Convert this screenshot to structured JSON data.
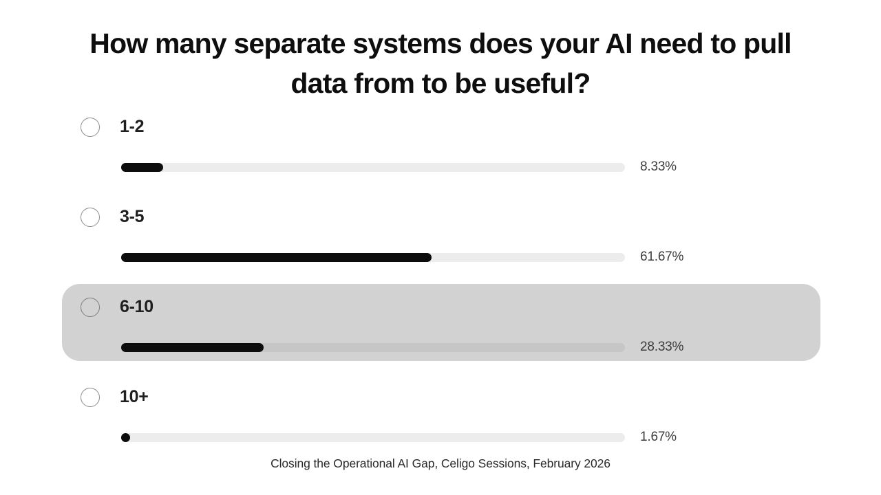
{
  "slide": {
    "title": "How many separate systems does your AI need to pull data from to be useful?",
    "footer": "Closing the Operational AI Gap, Celigo Sessions, February 2026"
  },
  "poll": {
    "highlighted_index": 2,
    "options": [
      {
        "label": "1-2",
        "value": 8.33,
        "percent_label": "8.33%"
      },
      {
        "label": "3-5",
        "value": 61.67,
        "percent_label": "61.67%"
      },
      {
        "label": "6-10",
        "value": 28.33,
        "percent_label": "28.33%"
      },
      {
        "label": "10+",
        "value": 1.67,
        "percent_label": "1.67%"
      }
    ]
  },
  "colors": {
    "bar_fill": "#0d0d0d",
    "bar_track": "#ececec",
    "bar_track_highlighted": "#c6c6c6",
    "highlight_background": "#d2d2d2",
    "title_text": "#0e0e0e",
    "percent_text": "#3c3c3c"
  },
  "chart_data": {
    "type": "bar",
    "orientation": "horizontal",
    "title": "How many separate systems does your AI need to pull data from to be useful?",
    "categories": [
      "1-2",
      "3-5",
      "6-10",
      "10+"
    ],
    "values": [
      8.33,
      61.67,
      28.33,
      1.67
    ],
    "unit": "%",
    "xlim": [
      0,
      100
    ],
    "highlighted_category": "6-10",
    "caption": "Closing the Operational AI Gap, Celigo Sessions, February 2026"
  }
}
